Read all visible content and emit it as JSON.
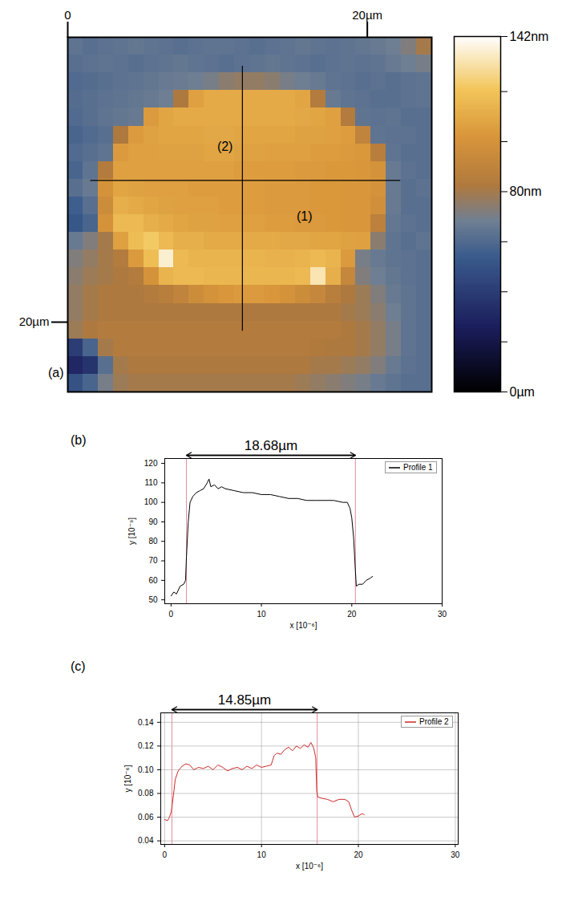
{
  "chart_data": [
    {
      "type": "heatmap",
      "panel_label": "(a)",
      "xlim": [
        0,
        24.3
      ],
      "ylim": [
        0,
        24.9
      ],
      "xticks": [
        {
          "value": 0,
          "label": "0"
        },
        {
          "value": 20,
          "label": "20µm"
        }
      ],
      "yticks": [
        {
          "value": 20,
          "label": "20µm"
        }
      ],
      "colorbar": {
        "range": [
          0,
          142
        ],
        "ticks": [
          {
            "value": 0,
            "label": "0µm"
          },
          {
            "value": 80,
            "label": "80nm"
          },
          {
            "value": 142,
            "label": "142nm"
          }
        ],
        "minor_ticks": [
          20,
          40,
          60,
          100,
          120
        ]
      },
      "profiles": [
        {
          "label": "(1)",
          "x1": 1.5,
          "y1": 10.05,
          "x2": 22.2,
          "y2": 10.05,
          "label_x": 15.8,
          "label_y": 12.6
        },
        {
          "label": "(2)",
          "x1": 11.66,
          "y1": 2.0,
          "x2": 11.66,
          "y2": 20.6,
          "label_x": 10.5,
          "label_y": 7.7
        }
      ],
      "cells": [
        [
          64,
          62,
          63,
          64,
          65,
          64,
          63,
          62,
          63,
          64,
          64,
          63,
          62,
          63,
          64,
          65,
          64,
          63,
          64,
          65,
          66,
          68,
          72,
          80
        ],
        [
          62,
          63,
          64,
          63,
          62,
          63,
          64,
          65,
          64,
          63,
          62,
          63,
          64,
          65,
          64,
          63,
          62,
          63,
          64,
          63,
          64,
          66,
          68,
          70
        ],
        [
          60,
          61,
          62,
          63,
          64,
          65,
          66,
          67,
          68,
          70,
          74,
          76,
          76,
          74,
          70,
          68,
          66,
          64,
          63,
          62,
          63,
          62,
          63,
          64
        ],
        [
          61,
          62,
          63,
          64,
          65,
          66,
          68,
          82,
          106,
          110,
          110,
          110,
          110,
          110,
          110,
          108,
          84,
          66,
          64,
          63,
          62,
          62,
          63,
          64
        ],
        [
          60,
          62,
          64,
          65,
          66,
          104,
          108,
          110,
          110,
          110,
          110,
          110,
          110,
          110,
          110,
          109,
          108,
          106,
          84,
          64,
          63,
          64,
          62,
          62
        ],
        [
          58,
          60,
          62,
          82,
          104,
          107,
          108,
          108,
          108,
          109,
          109,
          108,
          108,
          108,
          108,
          107,
          107,
          106,
          105,
          90,
          64,
          63,
          63,
          62
        ],
        [
          60,
          62,
          64,
          104,
          106,
          106,
          107,
          107,
          107,
          108,
          108,
          107,
          107,
          106,
          106,
          106,
          105,
          105,
          104,
          103,
          86,
          64,
          62,
          62
        ],
        [
          58,
          64,
          84,
          106,
          106,
          106,
          106,
          106,
          106,
          106,
          106,
          105,
          105,
          105,
          105,
          104,
          104,
          103,
          103,
          102,
          100,
          66,
          63,
          62
        ],
        [
          62,
          66,
          100,
          108,
          107,
          106,
          106,
          106,
          105,
          105,
          105,
          105,
          105,
          104,
          104,
          104,
          103,
          103,
          102,
          102,
          100,
          66,
          62,
          63
        ],
        [
          55,
          62,
          96,
          112,
          110,
          108,
          107,
          106,
          106,
          106,
          105,
          105,
          105,
          104,
          104,
          104,
          103,
          103,
          102,
          102,
          98,
          66,
          62,
          62
        ],
        [
          52,
          58,
          100,
          116,
          116,
          112,
          110,
          108,
          107,
          107,
          106,
          106,
          106,
          105,
          105,
          104,
          104,
          103,
          102,
          102,
          88,
          65,
          63,
          62
        ],
        [
          66,
          72,
          80,
          106,
          118,
          122,
          116,
          112,
          112,
          110,
          110,
          110,
          110,
          110,
          109,
          109,
          108,
          108,
          107,
          106,
          74,
          64,
          62,
          64
        ],
        [
          72,
          76,
          80,
          84,
          104,
          118,
          136,
          116,
          114,
          114,
          114,
          114,
          114,
          113,
          113,
          114,
          116,
          114,
          104,
          70,
          66,
          64,
          63,
          62
        ],
        [
          74,
          78,
          80,
          82,
          84,
          100,
          114,
          116,
          116,
          115,
          115,
          115,
          115,
          115,
          115,
          116,
          132,
          112,
          92,
          72,
          68,
          65,
          63,
          62
        ],
        [
          76,
          80,
          82,
          82,
          82,
          84,
          86,
          90,
          96,
          100,
          102,
          104,
          104,
          102,
          100,
          96,
          92,
          86,
          82,
          78,
          72,
          66,
          64,
          62
        ],
        [
          76,
          80,
          82,
          82,
          82,
          82,
          82,
          82,
          82,
          82,
          82,
          82,
          82,
          82,
          82,
          82,
          82,
          82,
          80,
          78,
          74,
          68,
          64,
          62
        ],
        [
          78,
          82,
          84,
          84,
          84,
          84,
          84,
          84,
          84,
          84,
          84,
          84,
          84,
          84,
          84,
          84,
          84,
          84,
          82,
          80,
          76,
          70,
          64,
          62
        ],
        [
          40,
          58,
          80,
          84,
          84,
          84,
          84,
          84,
          84,
          84,
          84,
          84,
          84,
          84,
          84,
          84,
          83,
          82,
          82,
          80,
          76,
          70,
          64,
          62
        ],
        [
          30,
          36,
          62,
          80,
          82,
          82,
          82,
          82,
          82,
          82,
          82,
          82,
          82,
          82,
          82,
          82,
          80,
          80,
          78,
          76,
          72,
          66,
          63,
          62
        ],
        [
          50,
          58,
          70,
          78,
          80,
          80,
          80,
          80,
          80,
          80,
          80,
          80,
          80,
          80,
          80,
          78,
          76,
          74,
          72,
          70,
          66,
          64,
          62,
          62
        ]
      ]
    },
    {
      "type": "line",
      "panel_label": "(b)",
      "xlabel": "x [10⁻⁶]",
      "ylabel": "y [10⁻⁹]",
      "xlim": [
        -0.7,
        30
      ],
      "ylim": [
        48,
        122.5
      ],
      "xticks": [
        0,
        10,
        20,
        30
      ],
      "yticks": [
        50,
        60,
        70,
        80,
        90,
        100,
        110,
        120
      ],
      "grid": false,
      "legend": "top-right",
      "x": [
        0,
        0.3,
        0.6,
        1.0,
        1.4,
        1.6,
        1.7,
        1.9,
        2.1,
        2.4,
        2.8,
        3.2,
        3.6,
        4.0,
        4.2,
        4.4,
        4.8,
        5.2,
        5.6,
        6,
        7,
        8,
        9,
        10,
        11,
        12,
        13,
        14,
        15,
        16,
        17,
        18,
        19,
        19.5,
        19.8,
        20.0,
        20.2,
        20.4,
        20.5,
        20.8,
        21.2,
        21.6,
        22,
        22.3
      ],
      "series": [
        {
          "name": "Profile 1",
          "color": "#000000",
          "values": [
            52,
            54,
            53,
            57,
            58,
            60,
            72,
            90,
            100,
            103,
            105,
            106,
            107,
            110,
            112,
            108,
            109,
            107,
            108,
            107,
            106,
            105,
            105,
            104,
            104,
            103,
            102,
            102,
            101,
            101,
            101,
            101,
            100,
            100,
            97,
            92,
            82,
            65,
            57,
            58,
            58,
            60,
            61,
            62
          ]
        }
      ],
      "measure": {
        "text": "18.68µm",
        "x1": 1.7,
        "x2": 20.4
      }
    },
    {
      "type": "line",
      "panel_label": "(c)",
      "xlabel": "x [10⁻⁶]",
      "ylabel": "y [10⁻⁶]",
      "xlim": [
        -0.4,
        30.3
      ],
      "ylim": [
        0.037,
        0.148
      ],
      "xticks": [
        0,
        10,
        20,
        30
      ],
      "yticks": [
        0.04,
        0.06,
        0.08,
        {
          "value": 0.1,
          "label": "0.10"
        },
        0.12,
        0.14
      ],
      "grid": true,
      "legend": "top-right",
      "x": [
        0,
        0.3,
        0.5,
        0.7,
        0.9,
        1.1,
        1.4,
        1.8,
        2.2,
        2.6,
        3,
        3.5,
        4,
        4.5,
        5,
        5.5,
        6,
        6.5,
        7,
        7.5,
        8,
        8.5,
        9,
        9.5,
        10,
        10.5,
        11,
        11.3,
        11.6,
        12,
        12.4,
        12.8,
        13.2,
        13.6,
        14,
        14.4,
        14.8,
        15.1,
        15.4,
        15.6,
        15.7,
        15.8,
        16.2,
        16.8,
        17.4,
        18,
        18.6,
        19,
        19.3,
        19.6,
        20,
        20.4,
        20.6
      ],
      "series": [
        {
          "name": "Profile 2",
          "color": "#cc2a2a",
          "values": [
            0.058,
            0.057,
            0.06,
            0.065,
            0.078,
            0.092,
            0.099,
            0.103,
            0.105,
            0.104,
            0.1,
            0.102,
            0.101,
            0.103,
            0.1,
            0.104,
            0.102,
            0.099,
            0.101,
            0.102,
            0.1,
            0.103,
            0.101,
            0.104,
            0.102,
            0.103,
            0.104,
            0.112,
            0.114,
            0.113,
            0.117,
            0.119,
            0.116,
            0.12,
            0.118,
            0.121,
            0.119,
            0.123,
            0.118,
            0.11,
            0.082,
            0.077,
            0.076,
            0.075,
            0.073,
            0.075,
            0.075,
            0.073,
            0.066,
            0.06,
            0.061,
            0.063,
            0.062
          ]
        }
      ],
      "measure": {
        "text": "14.85µm",
        "x1": 0.75,
        "x2": 15.75
      }
    }
  ]
}
